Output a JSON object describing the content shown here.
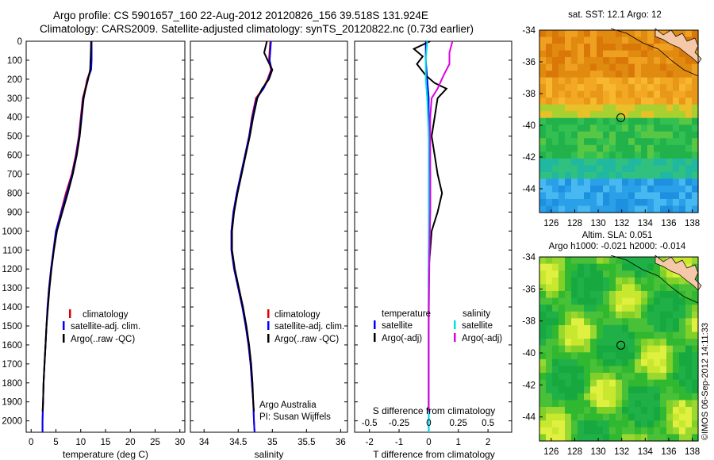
{
  "header": {
    "line1": "Argo profile: CS 5901657_160 22-Aug-2012 20120826_156 39.518S 131.924E",
    "line2": "Climatology: CARS2009. Satellite-adjusted climatology: synTS_20120822.nc (0.73d earlier)"
  },
  "colors": {
    "climatology": "#e00000",
    "satellite": "#0000ff",
    "argo": "#000000",
    "sal_satellite": "#00e0e0",
    "sal_argo": "#e000e0"
  },
  "depth_axis": {
    "ticks": [
      0,
      100,
      200,
      300,
      400,
      500,
      600,
      700,
      800,
      900,
      1000,
      1100,
      1200,
      1300,
      1400,
      1500,
      1600,
      1700,
      1800,
      1900,
      2000
    ],
    "range": [
      0,
      2060
    ]
  },
  "panels": {
    "temperature": {
      "xlabel": "temperature (deg C)",
      "xlim": [
        -1,
        31
      ],
      "xticks": [
        0,
        5,
        10,
        15,
        20,
        25,
        30
      ],
      "legend": [
        "climatology",
        "satellite-adj. clim.",
        "Argo(..raw -QC)"
      ]
    },
    "salinity": {
      "xlabel": "salinity",
      "xlim": [
        33.8,
        36.1
      ],
      "xticks": [
        "34",
        "34.5",
        "35",
        "35.5",
        "36"
      ],
      "legend": [
        "climatology",
        "satellite-adj. clim.",
        "Argo(..raw -QC)"
      ],
      "note1": "Argo Australia",
      "note2": "PI: Susan Wijffels"
    },
    "difference": {
      "xlabel": "T difference from climatology",
      "top_label": "S difference from climatology",
      "xticks": [
        "-2",
        "-1",
        "0",
        "1",
        "2"
      ],
      "top_ticks": [
        "-0.5",
        "-0.25",
        "0",
        "0.25",
        "0.5"
      ],
      "legend_t_title": "temperature",
      "legend_s_title": "salinity",
      "legend_t": [
        "satellite",
        "Argo(-adj)"
      ],
      "legend_s": [
        "satellite",
        "Argo(-adj)"
      ]
    }
  },
  "maps": {
    "sst": {
      "title": "sat. SST: 12.1 Argo: 12"
    },
    "sla": {
      "title1": "Altim. SLA: 0.051",
      "title2": "Argo h1000: -0.021 h2000: -0.014"
    },
    "lat_ticks": [
      "-34",
      "-36",
      "-38",
      "-40",
      "-42",
      "-44"
    ],
    "lon_ticks": [
      "126",
      "128",
      "130",
      "132",
      "134",
      "136",
      "138"
    ],
    "lon_range": [
      125,
      138.5
    ],
    "lat_range": [
      -34,
      -45.5
    ],
    "float_position": {
      "lon": 131.924,
      "lat": -39.518
    }
  },
  "footer": {
    "stamp": "©IMOS 06-Sep-2012 14:11:33"
  },
  "chart_data": [
    {
      "type": "line",
      "panel": "temperature",
      "xlabel": "temperature (deg C)",
      "xlim": [
        -1,
        31
      ],
      "ylim": [
        2060,
        0
      ],
      "series": [
        {
          "name": "climatology",
          "points": [
            [
              12.1,
              0
            ],
            [
              12.1,
              100
            ],
            [
              12.0,
              150
            ],
            [
              11.3,
              200
            ],
            [
              10.9,
              250
            ],
            [
              10.4,
              300
            ],
            [
              10.0,
              400
            ],
            [
              9.6,
              500
            ],
            [
              9.0,
              600
            ],
            [
              8.2,
              700
            ],
            [
              7.0,
              800
            ],
            [
              6.0,
              900
            ],
            [
              5.0,
              1000
            ],
            [
              4.5,
              1100
            ],
            [
              4.0,
              1200
            ],
            [
              3.6,
              1300
            ],
            [
              3.3,
              1400
            ],
            [
              3.1,
              1500
            ],
            [
              2.9,
              1600
            ],
            [
              2.7,
              1700
            ],
            [
              2.5,
              1800
            ],
            [
              2.4,
              1900
            ],
            [
              2.3,
              2000
            ],
            [
              2.3,
              2060
            ]
          ]
        },
        {
          "name": "satellite-adj. clim.",
          "points": [
            [
              12.2,
              0
            ],
            [
              12.2,
              100
            ],
            [
              12.1,
              150
            ],
            [
              11.4,
              200
            ],
            [
              11.0,
              250
            ],
            [
              10.5,
              300
            ],
            [
              10.1,
              400
            ],
            [
              9.7,
              500
            ],
            [
              9.1,
              600
            ],
            [
              8.3,
              700
            ],
            [
              7.2,
              800
            ],
            [
              6.1,
              900
            ],
            [
              5.0,
              1000
            ],
            [
              4.5,
              1100
            ],
            [
              4.0,
              1200
            ],
            [
              3.6,
              1300
            ],
            [
              3.3,
              1400
            ],
            [
              3.1,
              1500
            ],
            [
              2.9,
              1600
            ],
            [
              2.7,
              1700
            ],
            [
              2.5,
              1800
            ],
            [
              2.4,
              1900
            ],
            [
              2.3,
              2000
            ],
            [
              2.3,
              2060
            ]
          ]
        },
        {
          "name": "Argo(..raw -QC)",
          "points": [
            [
              12.1,
              0
            ],
            [
              12.0,
              80
            ],
            [
              11.9,
              150
            ],
            [
              11.5,
              200
            ],
            [
              11.0,
              250
            ],
            [
              10.6,
              300
            ],
            [
              10.2,
              400
            ],
            [
              9.8,
              500
            ],
            [
              9.2,
              600
            ],
            [
              8.4,
              700
            ],
            [
              7.4,
              800
            ],
            [
              6.3,
              900
            ],
            [
              5.2,
              1000
            ],
            [
              4.6,
              1100
            ],
            [
              4.1,
              1200
            ],
            [
              3.7,
              1300
            ],
            [
              3.4,
              1400
            ],
            [
              3.1,
              1500
            ],
            [
              2.9,
              1600
            ],
            [
              2.7,
              1700
            ],
            [
              2.5,
              1800
            ],
            [
              2.4,
              1900
            ],
            [
              2.3,
              1950
            ]
          ]
        }
      ]
    },
    {
      "type": "line",
      "panel": "salinity",
      "xlabel": "salinity",
      "xlim": [
        33.8,
        36.1
      ],
      "ylim": [
        2060,
        0
      ],
      "series": [
        {
          "name": "climatology",
          "points": [
            [
              34.97,
              0
            ],
            [
              34.95,
              100
            ],
            [
              34.98,
              150
            ],
            [
              34.93,
              200
            ],
            [
              34.86,
              250
            ],
            [
              34.76,
              300
            ],
            [
              34.7,
              400
            ],
            [
              34.66,
              500
            ],
            [
              34.6,
              600
            ],
            [
              34.54,
              700
            ],
            [
              34.48,
              800
            ],
            [
              34.43,
              900
            ],
            [
              34.4,
              1000
            ],
            [
              34.4,
              1100
            ],
            [
              34.44,
              1200
            ],
            [
              34.5,
              1300
            ],
            [
              34.56,
              1400
            ],
            [
              34.61,
              1500
            ],
            [
              34.65,
              1600
            ],
            [
              34.68,
              1700
            ],
            [
              34.7,
              1800
            ],
            [
              34.72,
              1900
            ],
            [
              34.73,
              2000
            ],
            [
              34.74,
              2060
            ]
          ]
        },
        {
          "name": "satellite-adj. clim.",
          "points": [
            [
              34.98,
              0
            ],
            [
              34.96,
              100
            ],
            [
              34.99,
              150
            ],
            [
              34.94,
              200
            ],
            [
              34.87,
              250
            ],
            [
              34.77,
              300
            ],
            [
              34.71,
              400
            ],
            [
              34.66,
              500
            ],
            [
              34.6,
              600
            ],
            [
              34.54,
              700
            ],
            [
              34.48,
              800
            ],
            [
              34.43,
              900
            ],
            [
              34.4,
              1000
            ],
            [
              34.4,
              1100
            ],
            [
              34.44,
              1200
            ],
            [
              34.5,
              1300
            ],
            [
              34.56,
              1400
            ],
            [
              34.61,
              1500
            ],
            [
              34.65,
              1600
            ],
            [
              34.68,
              1700
            ],
            [
              34.7,
              1800
            ],
            [
              34.72,
              1900
            ],
            [
              34.73,
              2000
            ],
            [
              34.74,
              2060
            ]
          ]
        },
        {
          "name": "Argo(..raw -QC)",
          "points": [
            [
              34.92,
              0
            ],
            [
              34.88,
              60
            ],
            [
              34.93,
              100
            ],
            [
              35.0,
              150
            ],
            [
              34.95,
              200
            ],
            [
              34.85,
              250
            ],
            [
              34.78,
              300
            ],
            [
              34.72,
              400
            ],
            [
              34.67,
              500
            ],
            [
              34.61,
              600
            ],
            [
              34.55,
              700
            ],
            [
              34.49,
              800
            ],
            [
              34.44,
              900
            ],
            [
              34.41,
              1000
            ],
            [
              34.41,
              1100
            ],
            [
              34.45,
              1200
            ],
            [
              34.51,
              1300
            ],
            [
              34.57,
              1400
            ],
            [
              34.62,
              1500
            ],
            [
              34.66,
              1600
            ],
            [
              34.69,
              1700
            ],
            [
              34.71,
              1800
            ],
            [
              34.72,
              1900
            ],
            [
              34.73,
              1950
            ]
          ]
        }
      ]
    },
    {
      "type": "line",
      "panel": "difference",
      "xlabel": "T difference from climatology",
      "xlim": [
        -2.5,
        2.8
      ],
      "ylim": [
        2060,
        0
      ],
      "series": [
        {
          "name": "temperature satellite",
          "points": [
            [
              -0.1,
              0
            ],
            [
              -0.1,
              100
            ],
            [
              -0.05,
              200
            ],
            [
              0,
              300
            ],
            [
              0,
              500
            ],
            [
              0.05,
              700
            ],
            [
              0.05,
              900
            ],
            [
              0,
              1100
            ],
            [
              0,
              1500
            ],
            [
              0,
              2000
            ],
            [
              0,
              2060
            ]
          ]
        },
        {
          "name": "temperature Argo(-adj)",
          "points": [
            [
              0.05,
              0
            ],
            [
              -0.5,
              40
            ],
            [
              -0.2,
              80
            ],
            [
              -0.4,
              120
            ],
            [
              -0.1,
              180
            ],
            [
              0.2,
              220
            ],
            [
              0.6,
              250
            ],
            [
              0.3,
              300
            ],
            [
              0.2,
              400
            ],
            [
              0.1,
              500
            ],
            [
              0.2,
              600
            ],
            [
              0.3,
              700
            ],
            [
              0.45,
              800
            ],
            [
              0.3,
              900
            ],
            [
              0.1,
              1000
            ],
            [
              0.05,
              1100
            ],
            [
              0,
              1200
            ],
            [
              0,
              1500
            ],
            [
              0,
              1950
            ]
          ]
        },
        {
          "name": "salinity satellite",
          "points": [
            [
              -0.05,
              0
            ],
            [
              -0.1,
              100
            ],
            [
              -0.1,
              200
            ],
            [
              -0.05,
              300
            ],
            [
              0,
              500
            ],
            [
              0,
              800
            ],
            [
              0,
              1200
            ],
            [
              0,
              2000
            ],
            [
              0,
              2060
            ]
          ]
        },
        {
          "name": "salinity Argo(-adj)",
          "points": [
            [
              0.8,
              0
            ],
            [
              0.7,
              60
            ],
            [
              0.7,
              120
            ],
            [
              0.5,
              180
            ],
            [
              0.3,
              250
            ],
            [
              0.1,
              300
            ],
            [
              0.05,
              400
            ],
            [
              0.05,
              600
            ],
            [
              0.05,
              900
            ],
            [
              0.02,
              1200
            ],
            [
              0,
              1500
            ],
            [
              0,
              1950
            ]
          ]
        }
      ]
    }
  ]
}
